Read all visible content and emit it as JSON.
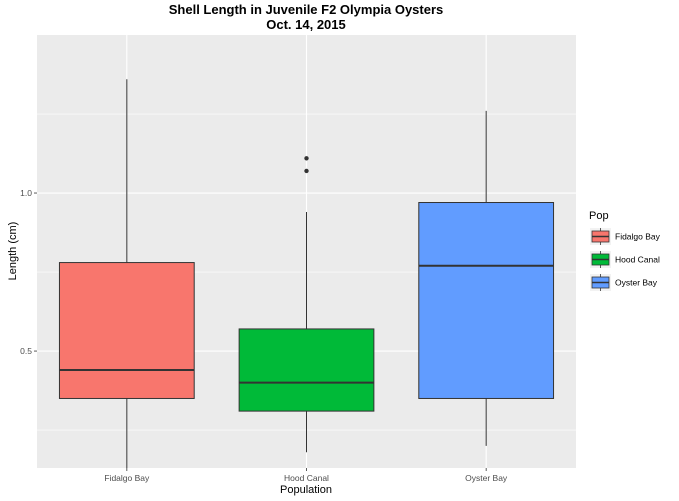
{
  "chart_data": {
    "type": "box",
    "title": "Shell Length in Juvenile F2 Olympia Oysters",
    "subtitle": "Oct. 14, 2015",
    "xlabel": "Population",
    "ylabel": "Length (cm)",
    "ylim": [
      0.13,
      1.5
    ],
    "yticks": [
      0.5,
      1.0
    ],
    "ytick_labels": [
      "0.5",
      "1.0"
    ],
    "categories": [
      "Fidalgo Bay",
      "Hood Canal",
      "Oyster Bay"
    ],
    "legend": {
      "title": "Pop",
      "position": "right",
      "entries": [
        "Fidalgo Bay",
        "Hood Canal",
        "Oyster Bay"
      ]
    },
    "grid": true,
    "series": [
      {
        "name": "Fidalgo Bay",
        "color": "#F8766D",
        "min": 0.13,
        "q1": 0.35,
        "median": 0.44,
        "q3": 0.78,
        "max": 1.36,
        "outliers": []
      },
      {
        "name": "Hood Canal",
        "color": "#00BA38",
        "min": 0.18,
        "q1": 0.31,
        "median": 0.4,
        "q3": 0.57,
        "max": 0.94,
        "outliers": [
          1.07,
          1.11
        ]
      },
      {
        "name": "Oyster Bay",
        "color": "#619CFF",
        "min": 0.2,
        "q1": 0.35,
        "median": 0.77,
        "q3": 0.97,
        "max": 1.26,
        "outliers": []
      }
    ]
  }
}
